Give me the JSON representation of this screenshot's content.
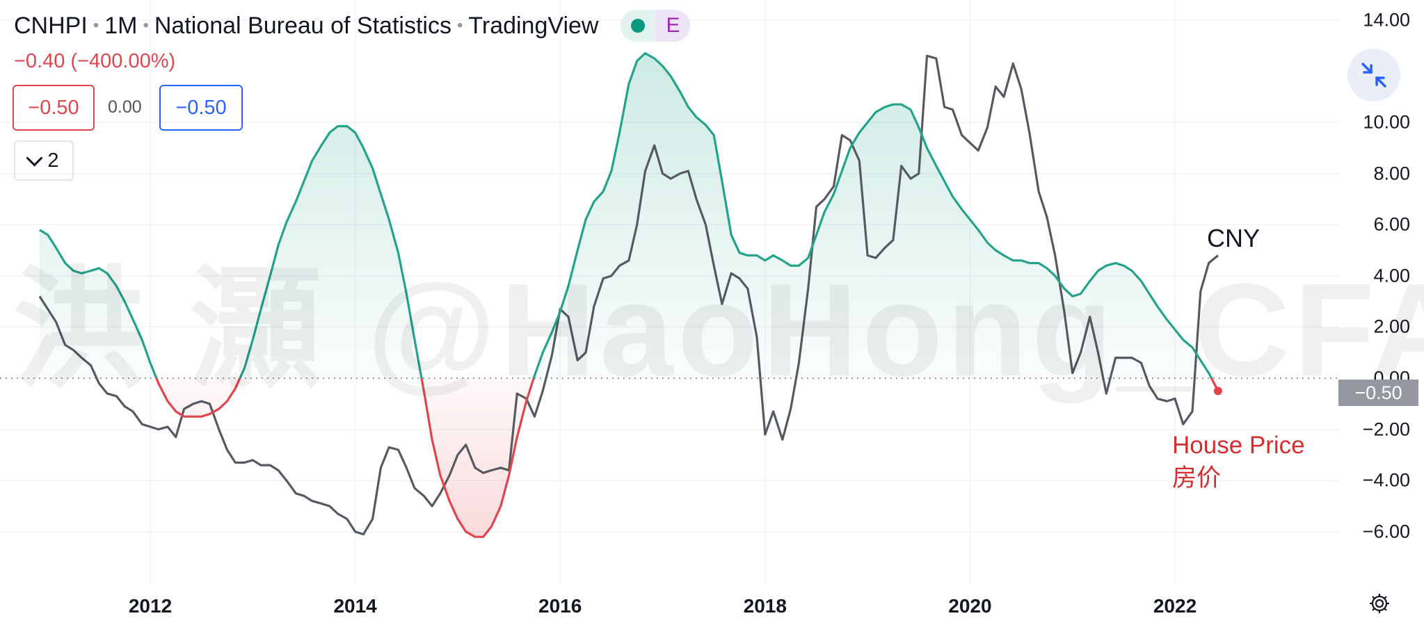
{
  "header": {
    "symbol": "CNHPI",
    "interval": "1M",
    "source": "National Bureau of Statistics",
    "platform": "TradingView",
    "badge_letter": "E"
  },
  "change_text": "−0.40 (−400.00%)",
  "price_boxes": {
    "left": "−0.50",
    "middle": "0.00",
    "right": "−0.50"
  },
  "legend_toggle_count": "2",
  "price_badge": "−0.50",
  "watermark": "洪 灝 @HaoHong_CFA",
  "annotations": {
    "cny": "CNY",
    "house_price_en": "House Price",
    "house_price_cn": "房价"
  },
  "colors": {
    "positive": "#22a38a",
    "negative": "#e0454e",
    "cny_line": "#555a62",
    "annotation_red": "#d32f2f",
    "badge": "#9598a1"
  },
  "icons": [
    "minimize-icon",
    "settings-gear-icon",
    "chevron-down-icon"
  ],
  "chart_data": {
    "type": "line",
    "y_ticks": [
      "14.00",
      "10.00",
      "8.00",
      "6.00",
      "4.00",
      "2.00",
      "0.00",
      "−2.00",
      "−4.00",
      "−6.00"
    ],
    "x_ticks": [
      "2012",
      "2014",
      "2016",
      "2018",
      "2020",
      "2022"
    ],
    "ylim": [
      -7.5,
      14.5
    ],
    "baseline": 0,
    "series": [
      {
        "name": "House Price",
        "points": [
          [
            2010.92,
            5.8
          ],
          [
            2011.0,
            5.6
          ],
          [
            2011.08,
            5.1
          ],
          [
            2011.17,
            4.5
          ],
          [
            2011.25,
            4.2
          ],
          [
            2011.33,
            4.1
          ],
          [
            2011.42,
            4.2
          ],
          [
            2011.5,
            4.3
          ],
          [
            2011.58,
            4.1
          ],
          [
            2011.67,
            3.6
          ],
          [
            2011.75,
            3.0
          ],
          [
            2011.83,
            2.3
          ],
          [
            2011.92,
            1.5
          ],
          [
            2012.0,
            0.6
          ],
          [
            2012.08,
            -0.2
          ],
          [
            2012.17,
            -0.9
          ],
          [
            2012.25,
            -1.3
          ],
          [
            2012.33,
            -1.5
          ],
          [
            2012.42,
            -1.5
          ],
          [
            2012.5,
            -1.5
          ],
          [
            2012.58,
            -1.4
          ],
          [
            2012.67,
            -1.2
          ],
          [
            2012.75,
            -0.9
          ],
          [
            2012.83,
            -0.4
          ],
          [
            2012.92,
            0.4
          ],
          [
            2013.0,
            1.5
          ],
          [
            2013.08,
            2.7
          ],
          [
            2013.17,
            4.0
          ],
          [
            2013.25,
            5.2
          ],
          [
            2013.33,
            6.1
          ],
          [
            2013.42,
            6.9
          ],
          [
            2013.5,
            7.7
          ],
          [
            2013.58,
            8.5
          ],
          [
            2013.67,
            9.1
          ],
          [
            2013.75,
            9.6
          ],
          [
            2013.83,
            9.85
          ],
          [
            2013.92,
            9.85
          ],
          [
            2014.0,
            9.6
          ],
          [
            2014.08,
            9.0
          ],
          [
            2014.17,
            8.2
          ],
          [
            2014.25,
            7.2
          ],
          [
            2014.33,
            6.2
          ],
          [
            2014.42,
            4.9
          ],
          [
            2014.5,
            3.3
          ],
          [
            2014.58,
            1.5
          ],
          [
            2014.67,
            -0.5
          ],
          [
            2014.75,
            -2.4
          ],
          [
            2014.83,
            -3.8
          ],
          [
            2014.92,
            -4.8
          ],
          [
            2015.0,
            -5.5
          ],
          [
            2015.08,
            -6.0
          ],
          [
            2015.17,
            -6.2
          ],
          [
            2015.25,
            -6.2
          ],
          [
            2015.33,
            -5.8
          ],
          [
            2015.42,
            -5.0
          ],
          [
            2015.5,
            -3.8
          ],
          [
            2015.58,
            -2.3
          ],
          [
            2015.67,
            -0.9
          ],
          [
            2015.75,
            0.1
          ],
          [
            2015.83,
            1.0
          ],
          [
            2015.92,
            1.8
          ],
          [
            2016.0,
            2.6
          ],
          [
            2016.08,
            3.6
          ],
          [
            2016.17,
            5.0
          ],
          [
            2016.25,
            6.2
          ],
          [
            2016.33,
            6.9
          ],
          [
            2016.42,
            7.3
          ],
          [
            2016.5,
            8.1
          ],
          [
            2016.58,
            9.6
          ],
          [
            2016.67,
            11.5
          ],
          [
            2016.75,
            12.4
          ],
          [
            2016.83,
            12.7
          ],
          [
            2016.92,
            12.5
          ],
          [
            2017.0,
            12.2
          ],
          [
            2017.08,
            11.8
          ],
          [
            2017.17,
            11.2
          ],
          [
            2017.25,
            10.6
          ],
          [
            2017.33,
            10.2
          ],
          [
            2017.42,
            9.9
          ],
          [
            2017.5,
            9.5
          ],
          [
            2017.58,
            7.7
          ],
          [
            2017.67,
            5.6
          ],
          [
            2017.75,
            4.9
          ],
          [
            2017.83,
            4.8
          ],
          [
            2017.92,
            4.8
          ],
          [
            2018.0,
            4.6
          ],
          [
            2018.08,
            4.8
          ],
          [
            2018.17,
            4.6
          ],
          [
            2018.25,
            4.4
          ],
          [
            2018.33,
            4.4
          ],
          [
            2018.42,
            4.7
          ],
          [
            2018.5,
            5.6
          ],
          [
            2018.58,
            6.5
          ],
          [
            2018.67,
            7.2
          ],
          [
            2018.75,
            8.1
          ],
          [
            2018.83,
            9.0
          ],
          [
            2018.92,
            9.6
          ],
          [
            2019.0,
            10.0
          ],
          [
            2019.08,
            10.4
          ],
          [
            2019.17,
            10.6
          ],
          [
            2019.25,
            10.7
          ],
          [
            2019.33,
            10.7
          ],
          [
            2019.42,
            10.5
          ],
          [
            2019.5,
            9.8
          ],
          [
            2019.58,
            9.0
          ],
          [
            2019.67,
            8.3
          ],
          [
            2019.75,
            7.7
          ],
          [
            2019.83,
            7.1
          ],
          [
            2019.92,
            6.6
          ],
          [
            2020.0,
            6.2
          ],
          [
            2020.08,
            5.8
          ],
          [
            2020.17,
            5.3
          ],
          [
            2020.25,
            5.0
          ],
          [
            2020.33,
            4.8
          ],
          [
            2020.42,
            4.6
          ],
          [
            2020.5,
            4.6
          ],
          [
            2020.58,
            4.5
          ],
          [
            2020.67,
            4.5
          ],
          [
            2020.75,
            4.3
          ],
          [
            2020.83,
            4.0
          ],
          [
            2020.92,
            3.5
          ],
          [
            2021.0,
            3.2
          ],
          [
            2021.08,
            3.3
          ],
          [
            2021.17,
            3.8
          ],
          [
            2021.25,
            4.2
          ],
          [
            2021.33,
            4.4
          ],
          [
            2021.42,
            4.5
          ],
          [
            2021.5,
            4.4
          ],
          [
            2021.58,
            4.2
          ],
          [
            2021.67,
            3.8
          ],
          [
            2021.75,
            3.3
          ],
          [
            2021.83,
            2.8
          ],
          [
            2021.92,
            2.3
          ],
          [
            2022.0,
            1.9
          ],
          [
            2022.08,
            1.5
          ],
          [
            2022.17,
            1.2
          ],
          [
            2022.25,
            0.7
          ],
          [
            2022.33,
            0.2
          ],
          [
            2022.42,
            -0.5
          ]
        ]
      },
      {
        "name": "CNY",
        "points": [
          [
            2010.92,
            3.2
          ],
          [
            2011.0,
            2.7
          ],
          [
            2011.08,
            2.2
          ],
          [
            2011.17,
            1.3
          ],
          [
            2011.25,
            1.1
          ],
          [
            2011.33,
            0.8
          ],
          [
            2011.42,
            0.5
          ],
          [
            2011.5,
            -0.2
          ],
          [
            2011.58,
            -0.6
          ],
          [
            2011.67,
            -0.7
          ],
          [
            2011.75,
            -1.1
          ],
          [
            2011.83,
            -1.3
          ],
          [
            2011.92,
            -1.8
          ],
          [
            2012.0,
            -1.9
          ],
          [
            2012.08,
            -2.0
          ],
          [
            2012.17,
            -1.9
          ],
          [
            2012.25,
            -2.3
          ],
          [
            2012.33,
            -1.2
          ],
          [
            2012.42,
            -1.0
          ],
          [
            2012.5,
            -0.9
          ],
          [
            2012.58,
            -1.0
          ],
          [
            2012.67,
            -2.0
          ],
          [
            2012.75,
            -2.8
          ],
          [
            2012.83,
            -3.3
          ],
          [
            2012.92,
            -3.3
          ],
          [
            2013.0,
            -3.2
          ],
          [
            2013.08,
            -3.4
          ],
          [
            2013.17,
            -3.4
          ],
          [
            2013.25,
            -3.6
          ],
          [
            2013.33,
            -4.0
          ],
          [
            2013.42,
            -4.5
          ],
          [
            2013.5,
            -4.6
          ],
          [
            2013.58,
            -4.8
          ],
          [
            2013.67,
            -4.9
          ],
          [
            2013.75,
            -5.0
          ],
          [
            2013.83,
            -5.3
          ],
          [
            2013.92,
            -5.5
          ],
          [
            2014.0,
            -6.0
          ],
          [
            2014.08,
            -6.1
          ],
          [
            2014.17,
            -5.5
          ],
          [
            2014.25,
            -3.5
          ],
          [
            2014.33,
            -2.7
          ],
          [
            2014.42,
            -2.8
          ],
          [
            2014.5,
            -3.5
          ],
          [
            2014.58,
            -4.3
          ],
          [
            2014.67,
            -4.6
          ],
          [
            2014.75,
            -5.0
          ],
          [
            2014.83,
            -4.5
          ],
          [
            2014.92,
            -3.8
          ],
          [
            2015.0,
            -3.0
          ],
          [
            2015.08,
            -2.6
          ],
          [
            2015.17,
            -3.5
          ],
          [
            2015.25,
            -3.7
          ],
          [
            2015.33,
            -3.6
          ],
          [
            2015.42,
            -3.5
          ],
          [
            2015.5,
            -3.6
          ],
          [
            2015.58,
            -0.6
          ],
          [
            2015.67,
            -0.8
          ],
          [
            2015.75,
            -1.5
          ],
          [
            2015.83,
            -0.5
          ],
          [
            2015.92,
            0.9
          ],
          [
            2016.0,
            2.7
          ],
          [
            2016.08,
            2.4
          ],
          [
            2016.17,
            0.7
          ],
          [
            2016.25,
            1.0
          ],
          [
            2016.33,
            2.8
          ],
          [
            2016.42,
            3.9
          ],
          [
            2016.5,
            4.0
          ],
          [
            2016.58,
            4.4
          ],
          [
            2016.67,
            4.6
          ],
          [
            2016.75,
            6.0
          ],
          [
            2016.83,
            8.1
          ],
          [
            2016.92,
            9.1
          ],
          [
            2017.0,
            8.0
          ],
          [
            2017.08,
            7.8
          ],
          [
            2017.17,
            8.0
          ],
          [
            2017.25,
            8.1
          ],
          [
            2017.33,
            7.0
          ],
          [
            2017.42,
            6.0
          ],
          [
            2017.5,
            4.4
          ],
          [
            2017.58,
            2.9
          ],
          [
            2017.67,
            4.1
          ],
          [
            2017.75,
            3.9
          ],
          [
            2017.83,
            3.5
          ],
          [
            2017.92,
            1.6
          ],
          [
            2018.0,
            -2.2
          ],
          [
            2018.08,
            -1.3
          ],
          [
            2018.17,
            -2.4
          ],
          [
            2018.25,
            -1.2
          ],
          [
            2018.33,
            0.6
          ],
          [
            2018.42,
            3.5
          ],
          [
            2018.5,
            6.7
          ],
          [
            2018.58,
            7.0
          ],
          [
            2018.67,
            7.5
          ],
          [
            2018.75,
            9.5
          ],
          [
            2018.83,
            9.3
          ],
          [
            2018.92,
            8.5
          ],
          [
            2019.0,
            4.8
          ],
          [
            2019.08,
            4.7
          ],
          [
            2019.17,
            5.1
          ],
          [
            2019.25,
            5.4
          ],
          [
            2019.33,
            8.3
          ],
          [
            2019.42,
            7.8
          ],
          [
            2019.5,
            8.0
          ],
          [
            2019.58,
            12.6
          ],
          [
            2019.67,
            12.5
          ],
          [
            2019.75,
            10.6
          ],
          [
            2019.83,
            10.5
          ],
          [
            2019.92,
            9.5
          ],
          [
            2020.0,
            9.2
          ],
          [
            2020.08,
            8.9
          ],
          [
            2020.17,
            9.8
          ],
          [
            2020.25,
            11.4
          ],
          [
            2020.33,
            11.0
          ],
          [
            2020.42,
            12.3
          ],
          [
            2020.5,
            11.3
          ],
          [
            2020.58,
            9.6
          ],
          [
            2020.67,
            7.3
          ],
          [
            2020.75,
            6.3
          ],
          [
            2020.83,
            4.8
          ],
          [
            2020.92,
            2.6
          ],
          [
            2021.0,
            0.2
          ],
          [
            2021.08,
            1.0
          ],
          [
            2021.17,
            2.4
          ],
          [
            2021.25,
            1.0
          ],
          [
            2021.33,
            -0.6
          ],
          [
            2021.42,
            0.8
          ],
          [
            2021.5,
            0.8
          ],
          [
            2021.58,
            0.8
          ],
          [
            2021.67,
            0.6
          ],
          [
            2021.75,
            -0.3
          ],
          [
            2021.83,
            -0.8
          ],
          [
            2021.92,
            -0.9
          ],
          [
            2022.0,
            -0.8
          ],
          [
            2022.08,
            -1.8
          ],
          [
            2022.17,
            -1.3
          ],
          [
            2022.25,
            3.4
          ],
          [
            2022.33,
            4.5
          ],
          [
            2022.42,
            4.8
          ]
        ]
      }
    ]
  }
}
